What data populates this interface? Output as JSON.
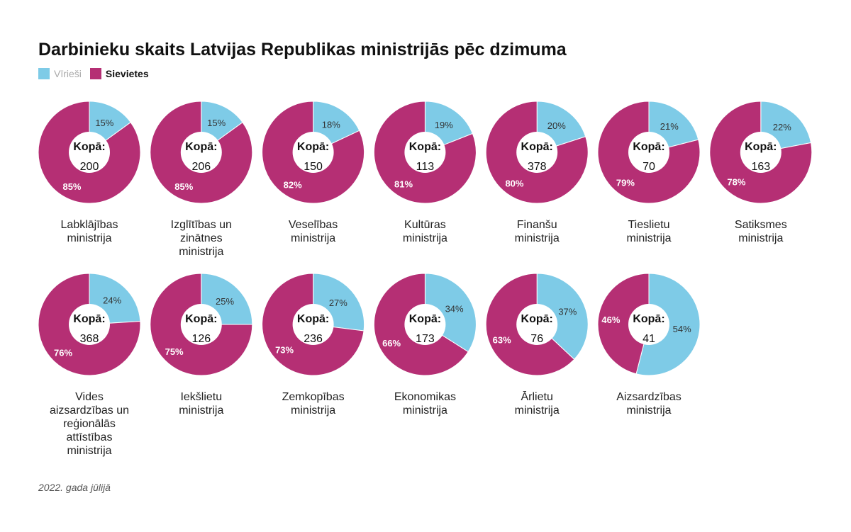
{
  "chart_data": {
    "type": "pie",
    "title": "Darbinieku skaits Latvijas Republikas ministrijās pēc dzimuma",
    "legend": [
      {
        "name": "Vīrieši",
        "color": "#7ecbe7"
      },
      {
        "name": "Sievietes",
        "color": "#b52f74"
      }
    ],
    "total_label": "Kopā:",
    "items": [
      {
        "name": "Labklājības ministrija",
        "men": 15,
        "women": 85,
        "total": 200
      },
      {
        "name": "Izglītības un zinātnes ministrija",
        "men": 15,
        "women": 85,
        "total": 206
      },
      {
        "name": "Veselības ministrija",
        "men": 18,
        "women": 82,
        "total": 150
      },
      {
        "name": "Kultūras ministrija",
        "men": 19,
        "women": 81,
        "total": 113
      },
      {
        "name": "Finanšu ministrija",
        "men": 20,
        "women": 80,
        "total": 378
      },
      {
        "name": "Tieslietu ministrija",
        "men": 21,
        "women": 79,
        "total": 70
      },
      {
        "name": "Satiksmes ministrija",
        "men": 22,
        "women": 78,
        "total": 163
      },
      {
        "name": "Vides aizsardzības un reģionālās attīstības ministrija",
        "men": 24,
        "women": 76,
        "total": 368
      },
      {
        "name": "Iekšlietu ministrija",
        "men": 25,
        "women": 75,
        "total": 126
      },
      {
        "name": "Zemkopības ministrija",
        "men": 27,
        "women": 73,
        "total": 236
      },
      {
        "name": "Ekonomikas ministrija",
        "men": 34,
        "women": 66,
        "total": 173
      },
      {
        "name": "Ārlietu ministrija",
        "men": 37,
        "women": 63,
        "total": 76
      },
      {
        "name": "Aizsardzības ministrija",
        "men": 54,
        "women": 46,
        "total": 41
      }
    ],
    "note": "2022. gada jūlijā"
  }
}
